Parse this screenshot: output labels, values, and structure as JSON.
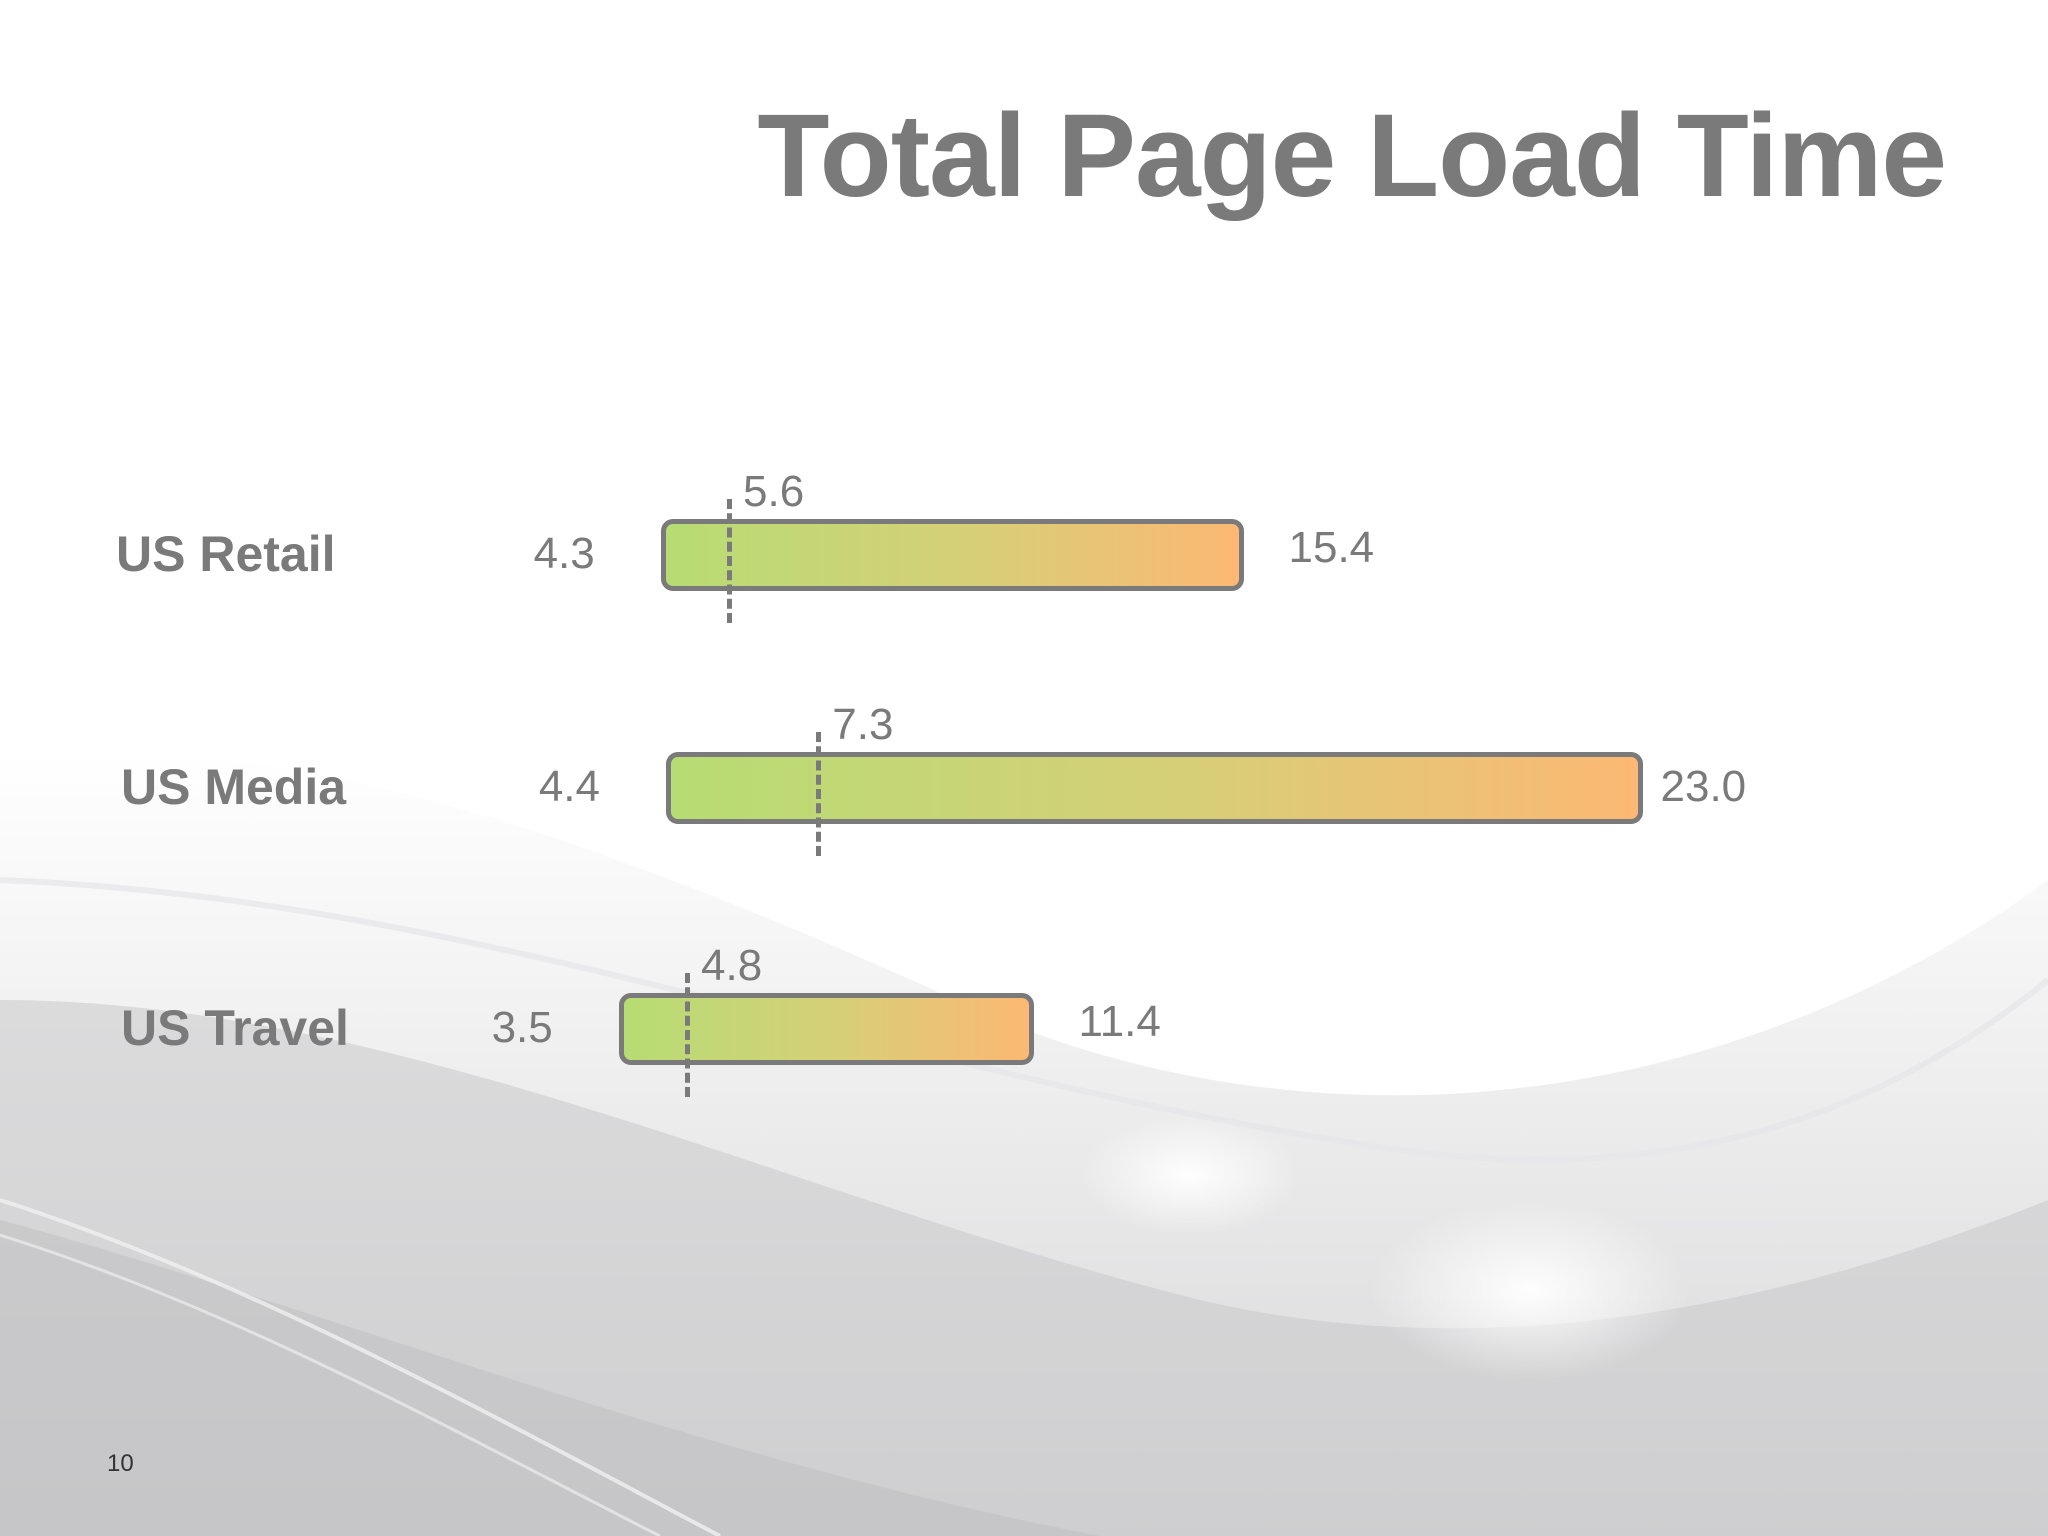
{
  "slide": {
    "page_number": "10"
  },
  "chart_data": {
    "type": "bar",
    "orientation": "horizontal",
    "title": "Total Page Load Time",
    "categories": [
      "US Retail",
      "US Media",
      "US Travel"
    ],
    "series": [
      {
        "min": [
          4.3,
          4.4,
          3.5
        ],
        "median": [
          5.6,
          7.3,
          4.8
        ],
        "max": [
          15.4,
          23.0,
          11.4
        ]
      }
    ],
    "min_labels": [
      "4.3",
      "4.4",
      "3.5"
    ],
    "median_labels": [
      "5.6",
      "7.3",
      "4.8"
    ],
    "max_labels": [
      "15.4",
      "23.0",
      "11.4"
    ],
    "grid": false,
    "colors": {
      "bar_gradient_start": "#b7dc74",
      "bar_gradient_mid": "#d4d078",
      "bar_gradient_end": "#fcb874",
      "bar_border": "#7a7a7a",
      "text": "#7a7a7a"
    }
  }
}
